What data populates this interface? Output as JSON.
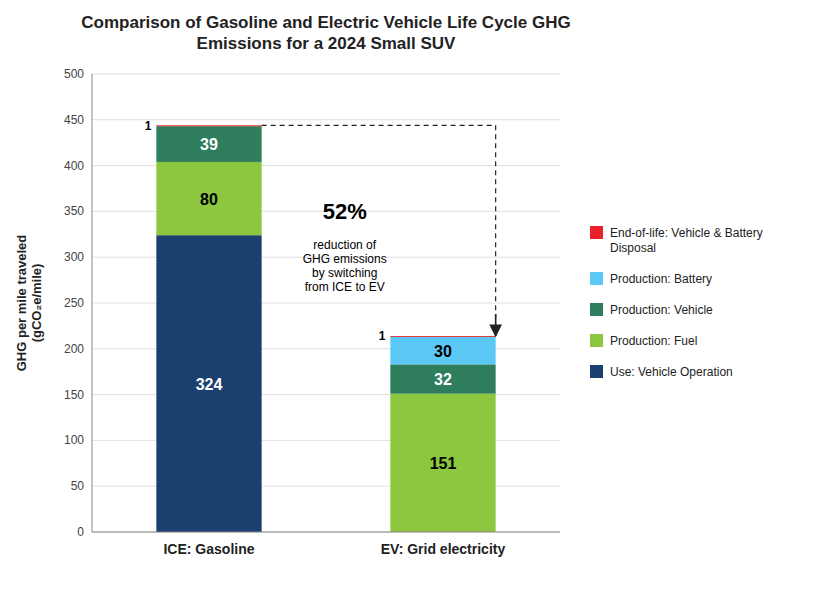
{
  "chart_data": {
    "type": "bar",
    "stacked": true,
    "title": "Comparison of Gasoline and Electric Vehicle Life Cycle GHG\nEmissions for a 2024 Small SUV",
    "ylabel": "GHG per mile traveled\n(gCO₂e/mile)",
    "categories": [
      "ICE: Gasoline",
      "EV: Grid electricity"
    ],
    "series": [
      {
        "name": "Use: Vehicle Operation",
        "color": "#1b3f6e",
        "values": [
          324,
          0
        ]
      },
      {
        "name": "Production: Fuel",
        "color": "#8dc63f",
        "values": [
          80,
          151
        ]
      },
      {
        "name": "Production: Vehicle",
        "color": "#2e7d5c",
        "values": [
          39,
          32
        ]
      },
      {
        "name": "Production: Battery",
        "color": "#5bc8f5",
        "values": [
          0,
          30
        ]
      },
      {
        "name": "End-of-life: Vehicle & Battery\nDisposal",
        "color": "#e8212a",
        "values": [
          1,
          1
        ]
      }
    ],
    "ylim": [
      0,
      500
    ],
    "yticks": [
      0,
      50,
      100,
      150,
      200,
      250,
      300,
      350,
      400,
      450,
      500
    ],
    "grid": true,
    "legend": "right",
    "data_labels": true,
    "annotations": [
      "52%",
      "reduction of\nGHG emissions\nby switching\nfrom ICE to EV"
    ]
  }
}
